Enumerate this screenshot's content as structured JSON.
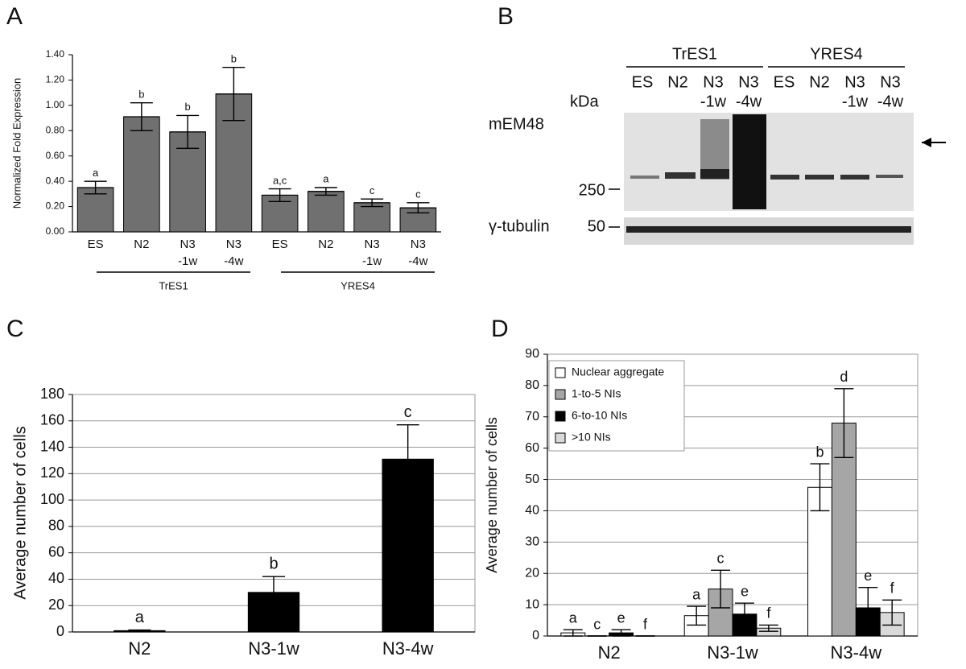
{
  "chart_data": [
    {
      "type": "bar",
      "panel": "A",
      "y_label": "Normalized Fold Expression",
      "categories": [
        [
          "ES"
        ],
        [
          "N2"
        ],
        [
          "N3",
          "-1w"
        ],
        [
          "N3",
          "-4w"
        ],
        [
          "ES"
        ],
        [
          "N2"
        ],
        [
          "N3",
          "-1w"
        ],
        [
          "N3",
          "-4w"
        ]
      ],
      "groups": [
        "TrES1",
        "YRES4"
      ],
      "values": [
        0.35,
        0.91,
        0.79,
        1.09,
        0.29,
        0.32,
        0.23,
        0.19
      ],
      "errors": [
        0.05,
        0.11,
        0.13,
        0.21,
        0.05,
        0.03,
        0.03,
        0.04
      ],
      "letters": [
        "a",
        "b",
        "b",
        "b",
        "a,c",
        "a",
        "c",
        "c"
      ],
      "color": "#707070",
      "grid": false,
      "ylim": [
        0,
        1.4
      ],
      "yticks": [
        {
          "value": 0,
          "label": "0.00"
        },
        {
          "value": 0.2,
          "label": "0.20"
        },
        {
          "value": 0.4,
          "label": "0.40"
        },
        {
          "value": 0.6,
          "label": "0.60"
        },
        {
          "value": 0.8,
          "label": "0.80"
        },
        {
          "value": 1.0,
          "label": "1.00"
        },
        {
          "value": 1.2,
          "label": "1.20"
        },
        {
          "value": 1.4,
          "label": "1.40"
        }
      ]
    },
    {
      "type": "bar",
      "panel": "C",
      "y_label": "Average number of cells",
      "categories": [
        [
          "N2"
        ],
        [
          "N3-1w"
        ],
        [
          "N3-4w"
        ]
      ],
      "values": [
        1,
        30,
        131
      ],
      "errors": [
        0.5,
        12,
        26
      ],
      "letters": [
        "a",
        "b",
        "c"
      ],
      "color": "#000000",
      "grid": true,
      "ylim": [
        0,
        180
      ],
      "yticks": [
        0,
        20,
        40,
        60,
        80,
        100,
        120,
        140,
        160,
        180
      ]
    },
    {
      "type": "bar",
      "panel": "D",
      "y_label": "Average number of cells",
      "categories": [
        [
          "N2"
        ],
        [
          "N3-1w"
        ],
        [
          "N3-4w"
        ]
      ],
      "series": [
        {
          "name": "Nuclear aggregate",
          "color": "#ffffff",
          "values": [
            1,
            6.5,
            47.5
          ],
          "errors": [
            1,
            3,
            7.5
          ],
          "letters": [
            "a",
            "a",
            "b"
          ]
        },
        {
          "name": "1-to-5 NIs",
          "color": "#a6a6a6",
          "values": [
            0,
            15,
            68
          ],
          "errors": [
            0,
            6,
            11
          ],
          "letters": [
            "c",
            "c",
            "d"
          ]
        },
        {
          "name": "6-to-10 NIs",
          "color": "#000000",
          "values": [
            1,
            7,
            9
          ],
          "errors": [
            1,
            3.5,
            6.5
          ],
          "letters": [
            "e",
            "e",
            "e"
          ]
        },
        {
          "name": ">10 NIs",
          "color": "#d9d9d9",
          "values": [
            0,
            2.5,
            7.5
          ],
          "errors": [
            0,
            1,
            4
          ],
          "letters": [
            "f",
            "f",
            "f"
          ]
        }
      ],
      "legend": "upper left",
      "grid": true,
      "ylim": [
        0,
        90
      ],
      "yticks": [
        0,
        10,
        20,
        30,
        40,
        50,
        60,
        70,
        80,
        90
      ]
    }
  ],
  "blot": {
    "panel": "B",
    "groups": [
      "TrES1",
      "YRES4"
    ],
    "lanes": [
      [
        "ES"
      ],
      [
        "N2"
      ],
      [
        "N3",
        "-1w"
      ],
      [
        "N3",
        "-4w"
      ],
      [
        "ES"
      ],
      [
        "N2"
      ],
      [
        "N3",
        "-1w"
      ],
      [
        "N3",
        "-4w"
      ]
    ],
    "unit": "kDa",
    "antibody": "mEM48",
    "loading": "γ-tubulin",
    "markers": [
      "250",
      "50"
    ]
  }
}
